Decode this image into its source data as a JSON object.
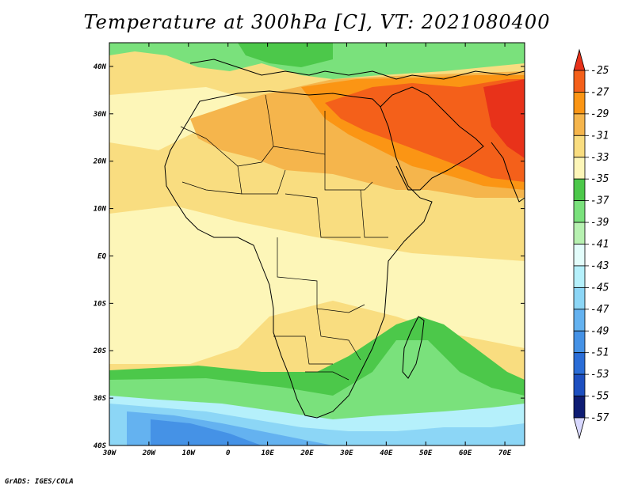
{
  "title": "Temperature at 300hPa [C], VT: 2021080400",
  "credit": "GrADS: IGES/COLA",
  "map": {
    "lon_labels": [
      "30W",
      "20W",
      "10W",
      "0",
      "10E",
      "20E",
      "30E",
      "40E",
      "50E",
      "60E",
      "70E"
    ],
    "lat_labels": [
      "40N",
      "30N",
      "20N",
      "10N",
      "EQ",
      "10S",
      "20S",
      "30S",
      "40S"
    ],
    "lon_range": [
      -30,
      75
    ],
    "lat_range": [
      -40,
      45
    ]
  },
  "colorbar": {
    "labels": [
      "-25",
      "-27",
      "-29",
      "-31",
      "-33",
      "-35",
      "-37",
      "-39",
      "-41",
      "-43",
      "-45",
      "-47",
      "-49",
      "-51",
      "-53",
      "-55",
      "-57"
    ],
    "colors": [
      "#e8321a",
      "#f4601a",
      "#fb9514",
      "#f5b54c",
      "#f9dd80",
      "#fdf6b8",
      "#4cc84a",
      "#7ae17c",
      "#b7f1b1",
      "#e3fdfb",
      "#b5f0fb",
      "#8cd6f6",
      "#64b2f0",
      "#4592e6",
      "#2a6dd7",
      "#1d4fc0",
      "#0e1c73",
      "#d8d8ff"
    ]
  },
  "zones": {
    "ocean_south_green": "#7ae17c",
    "far_south_blue": "#64b2f0",
    "deep_blue": "#4592e6"
  }
}
